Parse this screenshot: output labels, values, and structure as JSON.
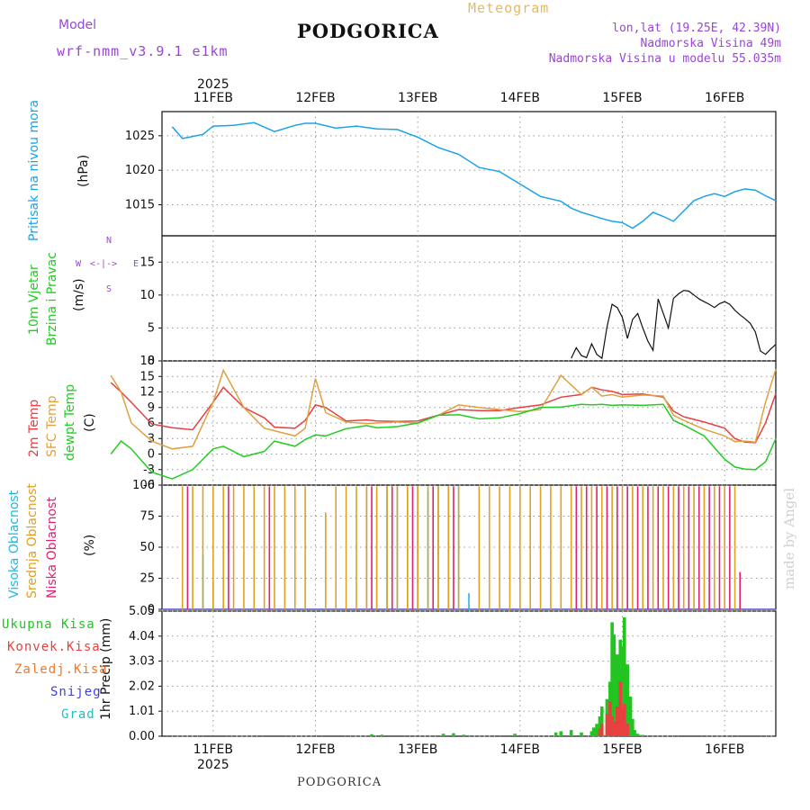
{
  "header": {
    "model_label": "Model",
    "model_name": "wrf-nmm_v3.9.1  e1km",
    "title": "PODGORICA",
    "subtitle": "Meteogram",
    "location": "lon,lat (19.25E, 42.39N)",
    "elevation": "Nadmorska Visina 49m",
    "model_elevation": "Nadmorska Visina u modelu 55.035m"
  },
  "footer": {
    "station": "PODGORICA",
    "watermark": "made by Angel"
  },
  "axis": {
    "year": "2025",
    "days": [
      "11FEB",
      "12FEB",
      "13FEB",
      "14FEB",
      "15FEB",
      "16FEB"
    ]
  },
  "panels": {
    "pressure": {
      "label": "Pritisak na nivou mora",
      "unit": "(hPa)"
    },
    "wind": {
      "label1": "10m Vjetar",
      "label2": "Brzina i Pravac",
      "unit": "(m/s)",
      "compass": {
        "n": "N",
        "s": "S",
        "e": "E",
        "w": "W"
      }
    },
    "temp": {
      "label1": "2m Temp",
      "label2": "SFC Temp",
      "label3": "dewpt Temp",
      "unit": "(C)"
    },
    "cloud": {
      "label1": "Visoka Oblacnost",
      "label2": "Srednja Oblacnost",
      "label3": "Niska Oblacnost",
      "unit": "(%)"
    },
    "precip": {
      "unit_label": "1hr Precip (mm)",
      "legend": [
        "Ukupna Kisa",
        "Konvek.Kisa",
        "Zaledj.Kisa",
        "Snijeg",
        "Grad"
      ]
    }
  },
  "colors": {
    "pressure": "#1aa3e8",
    "temp2m": "#e84040",
    "sfc": "#e0a040",
    "dewpt": "#22cc22",
    "high_cloud": "#20b8e0",
    "mid_cloud": "#e0a020",
    "low_cloud": "#e02070",
    "total_rain": "#22c422",
    "conv_rain": "#e84040",
    "freezing": "#f07828",
    "snow": "#4040e0",
    "hail": "#20c0c0",
    "wind_speed": "#111111",
    "gust": "#e84040"
  },
  "chart_data": [
    {
      "type": "line",
      "title": "PODGORICA",
      "ylabel": "Pritisak na nivou mora (hPa)",
      "x_unit": "days since 10FEB 00UTC",
      "ylim": [
        1010.5,
        1028.5
      ],
      "yticks": [
        1015,
        1020,
        1025
      ],
      "series": [
        {
          "name": "Pritisak na nivou mora",
          "x": [
            0.6,
            0.7,
            0.9,
            1.0,
            1.2,
            1.4,
            1.6,
            1.8,
            1.9,
            2.0,
            2.2,
            2.4,
            2.6,
            2.8,
            3.0,
            3.2,
            3.4,
            3.6,
            3.8,
            4.0,
            4.2,
            4.4,
            4.5,
            4.6,
            4.8,
            4.9,
            5.0,
            5.1,
            5.2,
            5.3,
            5.4,
            5.5,
            5.6,
            5.7,
            5.8,
            5.9,
            6.0,
            6.1,
            6.2,
            6.3,
            6.4,
            6.5
          ],
          "y": [
            1026.3,
            1024.6,
            1025.2,
            1026.4,
            1026.5,
            1026.9,
            1025.6,
            1026.5,
            1026.8,
            1026.8,
            1026.1,
            1026.4,
            1026.0,
            1025.9,
            1024.8,
            1023.3,
            1022.3,
            1020.4,
            1019.8,
            1018.0,
            1016.2,
            1015.5,
            1014.5,
            1013.9,
            1013.0,
            1012.6,
            1012.4,
            1011.6,
            1012.6,
            1013.9,
            1013.3,
            1012.6,
            1014.1,
            1015.6,
            1016.2,
            1016.6,
            1016.2,
            1016.9,
            1017.3,
            1017.1,
            1016.3,
            1015.6
          ]
        }
      ]
    },
    {
      "type": "line",
      "ylabel": "10m Vjetar Brzina i Pravac (m/s)",
      "ylim": [
        0,
        19
      ],
      "yticks": [
        0,
        5,
        10,
        15
      ],
      "series": [
        {
          "name": "Brzina",
          "x": [
            4.5,
            4.55,
            4.6,
            4.65,
            4.7,
            4.75,
            4.8,
            4.85,
            4.9,
            4.95,
            5.0,
            5.05,
            5.1,
            5.15,
            5.2,
            5.25,
            5.3,
            5.35,
            5.4,
            5.45,
            5.5,
            5.55,
            5.6,
            5.65,
            5.7,
            5.75,
            5.8,
            5.85,
            5.9,
            5.95,
            6.0,
            6.05,
            6.1,
            6.15,
            6.2,
            6.25,
            6.3,
            6.35,
            6.4,
            6.45,
            6.5
          ],
          "y": [
            0.4,
            2.0,
            0.8,
            0.5,
            2.6,
            1.0,
            0.4,
            5.2,
            8.6,
            8.1,
            6.6,
            3.4,
            6.3,
            7.2,
            5.0,
            3.0,
            1.6,
            9.4,
            7.2,
            5.0,
            9.5,
            10.2,
            10.7,
            10.6,
            10.0,
            9.4,
            9.0,
            8.6,
            8.1,
            8.7,
            9.0,
            8.6,
            7.7,
            7.0,
            6.4,
            5.7,
            4.4,
            1.5,
            1.0,
            1.8,
            2.5
          ]
        }
      ]
    },
    {
      "type": "line",
      "ylabel": "Temperature (C)",
      "ylim": [
        -6,
        18
      ],
      "yticks": [
        -6,
        -3,
        0,
        3,
        6,
        9,
        12,
        15,
        18
      ],
      "x": [
        0.0,
        0.1,
        0.2,
        0.4,
        0.6,
        0.8,
        1.0,
        1.1,
        1.3,
        1.5,
        1.6,
        1.8,
        1.9,
        2.0,
        2.1,
        2.3,
        2.5,
        2.6,
        2.8,
        3.0,
        3.2,
        3.4,
        3.6,
        3.8,
        4.0,
        4.2,
        4.4,
        4.6,
        4.7,
        4.8,
        4.9,
        5.0,
        5.2,
        5.4,
        5.5,
        5.6,
        5.8,
        6.0,
        6.1,
        6.2,
        6.3,
        6.4,
        6.5
      ],
      "series": [
        {
          "name": "2m Temp",
          "y": [
            13.8,
            12.0,
            10.0,
            5.8,
            5.1,
            4.7,
            10.0,
            12.9,
            9.0,
            7.0,
            5.2,
            5.0,
            6.5,
            9.5,
            9.0,
            6.4,
            6.6,
            6.4,
            6.3,
            6.4,
            7.5,
            8.6,
            8.4,
            8.4,
            9.0,
            9.5,
            11.0,
            11.5,
            12.9,
            12.4,
            12.1,
            11.5,
            11.6,
            11.0,
            8.3,
            7.2,
            6.2,
            5.0,
            3.0,
            2.3,
            2.2,
            6.0,
            11.7
          ]
        },
        {
          "name": "SFC Temp",
          "y": [
            15.2,
            12.0,
            6.0,
            2.5,
            1.0,
            1.5,
            10.0,
            16.2,
            9.0,
            5.0,
            4.5,
            3.5,
            5.0,
            14.6,
            8.0,
            6.2,
            5.9,
            6.0,
            6.2,
            6.0,
            7.5,
            9.5,
            9.0,
            8.6,
            8.2,
            8.6,
            15.2,
            11.5,
            12.9,
            11.2,
            11.5,
            11.0,
            11.4,
            11.2,
            7.5,
            6.5,
            4.8,
            3.5,
            2.4,
            2.5,
            2.3,
            10.0,
            16.4
          ]
        },
        {
          "name": "dewpt Temp",
          "y": [
            0.0,
            2.5,
            1.0,
            -3.5,
            -4.8,
            -3.0,
            1.0,
            1.5,
            -0.5,
            0.5,
            2.5,
            1.5,
            2.8,
            3.7,
            3.5,
            4.9,
            5.5,
            5.1,
            5.3,
            6.0,
            7.5,
            7.6,
            6.8,
            7.0,
            7.8,
            9.0,
            9.1,
            9.6,
            9.5,
            9.6,
            9.4,
            9.5,
            9.4,
            9.6,
            6.5,
            5.6,
            3.5,
            -1.0,
            -2.5,
            -2.9,
            -3.0,
            -1.5,
            3.0
          ]
        }
      ]
    },
    {
      "type": "bar",
      "ylabel": "Oblacnost (%)",
      "ylim": [
        0,
        100
      ],
      "yticks": [
        0,
        25,
        50,
        75,
        100
      ],
      "series": [
        {
          "name": "Visoka Oblacnost",
          "x": [
            0.9,
            1.0,
            1.1,
            2.5,
            2.6,
            2.7,
            2.8,
            2.9,
            3.0,
            3.1,
            3.2,
            3.3,
            3.4,
            3.5
          ],
          "y": [
            44,
            22,
            4,
            98,
            96,
            99,
            99,
            96,
            99,
            95,
            99,
            96,
            99,
            13
          ]
        },
        {
          "name": "Srednja Oblacnost",
          "x": [
            0.7,
            0.8,
            0.9,
            1.0,
            1.1,
            1.2,
            1.3,
            1.4,
            1.5,
            1.6,
            1.7,
            1.8,
            1.9,
            2.1,
            2.2,
            2.3,
            2.4,
            2.5,
            2.6,
            2.7,
            2.8,
            2.9,
            3.0,
            3.1,
            3.2,
            3.3,
            3.4,
            3.6,
            3.7,
            3.8,
            3.9,
            4.0,
            4.1,
            4.2,
            4.3,
            4.4,
            4.5,
            4.6,
            4.7,
            4.8,
            4.9,
            5.0,
            5.1,
            5.2,
            5.3,
            5.4,
            5.5,
            5.6,
            5.7,
            5.8,
            5.9,
            6.0,
            6.1
          ],
          "y": [
            99,
            99,
            99,
            99,
            99,
            99,
            99,
            99,
            99,
            99,
            99,
            99,
            99,
            78,
            99,
            99,
            99,
            99,
            99,
            99,
            99,
            99,
            99,
            99,
            99,
            99,
            99,
            99,
            99,
            99,
            99,
            99,
            99,
            99,
            99,
            99,
            99,
            99,
            99,
            99,
            99,
            99,
            99,
            99,
            99,
            99,
            99,
            99,
            99,
            99,
            99,
            99,
            99
          ]
        },
        {
          "name": "Niska Oblacnost",
          "x": [
            0.75,
            1.15,
            1.55,
            2.55,
            2.75,
            2.95,
            3.15,
            3.35,
            4.55,
            4.65,
            4.75,
            4.85,
            4.95,
            5.05,
            5.15,
            5.25,
            5.35,
            5.45,
            5.55,
            5.65,
            5.75,
            5.85,
            5.95,
            6.05,
            6.15
          ],
          "y": [
            99,
            99,
            99,
            99,
            99,
            99,
            99,
            99,
            99,
            99,
            99,
            99,
            99,
            99,
            99,
            99,
            99,
            99,
            99,
            99,
            99,
            99,
            99,
            99,
            30
          ]
        }
      ]
    },
    {
      "type": "bar",
      "ylabel": "1hr Precip (mm)",
      "ylim": [
        0,
        5.05
      ],
      "yticks": [
        0,
        1.01,
        2.02,
        3.03,
        4.04,
        5.05
      ],
      "series": [
        {
          "name": "Ukupna Kisa",
          "x": [
            2.55,
            2.65,
            3.25,
            3.35,
            3.45,
            3.95,
            4.35,
            4.4,
            4.5,
            4.6,
            4.7,
            4.72,
            4.75,
            4.78,
            4.8,
            4.85,
            4.88,
            4.9,
            4.92,
            4.95,
            4.98,
            5.0,
            5.02,
            5.05,
            5.08,
            5.1,
            5.12,
            5.15,
            5.18,
            5.2
          ],
          "y": [
            0.08,
            0.06,
            0.1,
            0.12,
            0.06,
            0.1,
            0.15,
            0.2,
            0.25,
            0.15,
            0.2,
            0.35,
            0.5,
            0.8,
            1.2,
            1.5,
            2.2,
            4.6,
            4.1,
            3.3,
            3.9,
            3.6,
            4.8,
            2.9,
            1.6,
            0.7,
            0.25,
            0.1,
            0.05,
            0.05
          ]
        },
        {
          "name": "Konvek.Kisa",
          "x": [
            4.78,
            4.8,
            4.85,
            4.88,
            4.9,
            4.92,
            4.95,
            4.98,
            5.0,
            5.02,
            5.05
          ],
          "y": [
            0.3,
            0.5,
            0.9,
            1.4,
            0.8,
            0.6,
            1.2,
            2.2,
            1.1,
            1.3,
            0.5
          ]
        }
      ]
    }
  ]
}
